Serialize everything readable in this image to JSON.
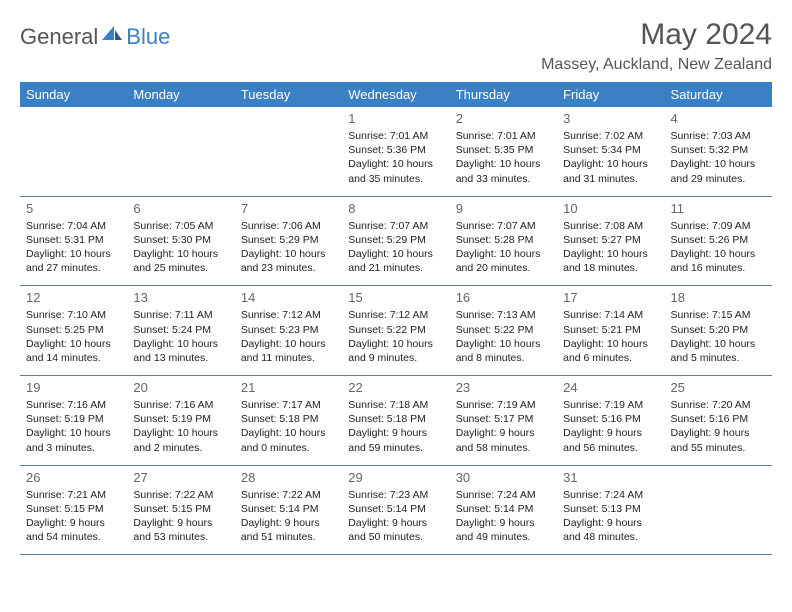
{
  "logo": {
    "text1": "General",
    "text2": "Blue"
  },
  "title": "May 2024",
  "location": "Massey, Auckland, New Zealand",
  "colors": {
    "header_bg": "#3b7fc4",
    "header_text": "#ffffff",
    "border": "#5a7a9a",
    "title_text": "#555555",
    "daynum_text": "#666666",
    "body_text": "#222222",
    "background": "#ffffff"
  },
  "fonts": {
    "title_size": 30,
    "location_size": 16,
    "header_size": 13,
    "daynum_size": 13,
    "body_size": 10.5
  },
  "weekdays": [
    "Sunday",
    "Monday",
    "Tuesday",
    "Wednesday",
    "Thursday",
    "Friday",
    "Saturday"
  ],
  "weeks": [
    [
      null,
      null,
      null,
      {
        "n": "1",
        "sr": "7:01 AM",
        "ss": "5:36 PM",
        "dl": "10 hours and 35 minutes."
      },
      {
        "n": "2",
        "sr": "7:01 AM",
        "ss": "5:35 PM",
        "dl": "10 hours and 33 minutes."
      },
      {
        "n": "3",
        "sr": "7:02 AM",
        "ss": "5:34 PM",
        "dl": "10 hours and 31 minutes."
      },
      {
        "n": "4",
        "sr": "7:03 AM",
        "ss": "5:32 PM",
        "dl": "10 hours and 29 minutes."
      }
    ],
    [
      {
        "n": "5",
        "sr": "7:04 AM",
        "ss": "5:31 PM",
        "dl": "10 hours and 27 minutes."
      },
      {
        "n": "6",
        "sr": "7:05 AM",
        "ss": "5:30 PM",
        "dl": "10 hours and 25 minutes."
      },
      {
        "n": "7",
        "sr": "7:06 AM",
        "ss": "5:29 PM",
        "dl": "10 hours and 23 minutes."
      },
      {
        "n": "8",
        "sr": "7:07 AM",
        "ss": "5:29 PM",
        "dl": "10 hours and 21 minutes."
      },
      {
        "n": "9",
        "sr": "7:07 AM",
        "ss": "5:28 PM",
        "dl": "10 hours and 20 minutes."
      },
      {
        "n": "10",
        "sr": "7:08 AM",
        "ss": "5:27 PM",
        "dl": "10 hours and 18 minutes."
      },
      {
        "n": "11",
        "sr": "7:09 AM",
        "ss": "5:26 PM",
        "dl": "10 hours and 16 minutes."
      }
    ],
    [
      {
        "n": "12",
        "sr": "7:10 AM",
        "ss": "5:25 PM",
        "dl": "10 hours and 14 minutes."
      },
      {
        "n": "13",
        "sr": "7:11 AM",
        "ss": "5:24 PM",
        "dl": "10 hours and 13 minutes."
      },
      {
        "n": "14",
        "sr": "7:12 AM",
        "ss": "5:23 PM",
        "dl": "10 hours and 11 minutes."
      },
      {
        "n": "15",
        "sr": "7:12 AM",
        "ss": "5:22 PM",
        "dl": "10 hours and 9 minutes."
      },
      {
        "n": "16",
        "sr": "7:13 AM",
        "ss": "5:22 PM",
        "dl": "10 hours and 8 minutes."
      },
      {
        "n": "17",
        "sr": "7:14 AM",
        "ss": "5:21 PM",
        "dl": "10 hours and 6 minutes."
      },
      {
        "n": "18",
        "sr": "7:15 AM",
        "ss": "5:20 PM",
        "dl": "10 hours and 5 minutes."
      }
    ],
    [
      {
        "n": "19",
        "sr": "7:16 AM",
        "ss": "5:19 PM",
        "dl": "10 hours and 3 minutes."
      },
      {
        "n": "20",
        "sr": "7:16 AM",
        "ss": "5:19 PM",
        "dl": "10 hours and 2 minutes."
      },
      {
        "n": "21",
        "sr": "7:17 AM",
        "ss": "5:18 PM",
        "dl": "10 hours and 0 minutes."
      },
      {
        "n": "22",
        "sr": "7:18 AM",
        "ss": "5:18 PM",
        "dl": "9 hours and 59 minutes."
      },
      {
        "n": "23",
        "sr": "7:19 AM",
        "ss": "5:17 PM",
        "dl": "9 hours and 58 minutes."
      },
      {
        "n": "24",
        "sr": "7:19 AM",
        "ss": "5:16 PM",
        "dl": "9 hours and 56 minutes."
      },
      {
        "n": "25",
        "sr": "7:20 AM",
        "ss": "5:16 PM",
        "dl": "9 hours and 55 minutes."
      }
    ],
    [
      {
        "n": "26",
        "sr": "7:21 AM",
        "ss": "5:15 PM",
        "dl": "9 hours and 54 minutes."
      },
      {
        "n": "27",
        "sr": "7:22 AM",
        "ss": "5:15 PM",
        "dl": "9 hours and 53 minutes."
      },
      {
        "n": "28",
        "sr": "7:22 AM",
        "ss": "5:14 PM",
        "dl": "9 hours and 51 minutes."
      },
      {
        "n": "29",
        "sr": "7:23 AM",
        "ss": "5:14 PM",
        "dl": "9 hours and 50 minutes."
      },
      {
        "n": "30",
        "sr": "7:24 AM",
        "ss": "5:14 PM",
        "dl": "9 hours and 49 minutes."
      },
      {
        "n": "31",
        "sr": "7:24 AM",
        "ss": "5:13 PM",
        "dl": "9 hours and 48 minutes."
      },
      null
    ]
  ],
  "labels": {
    "sunrise": "Sunrise:",
    "sunset": "Sunset:",
    "daylight": "Daylight:"
  }
}
